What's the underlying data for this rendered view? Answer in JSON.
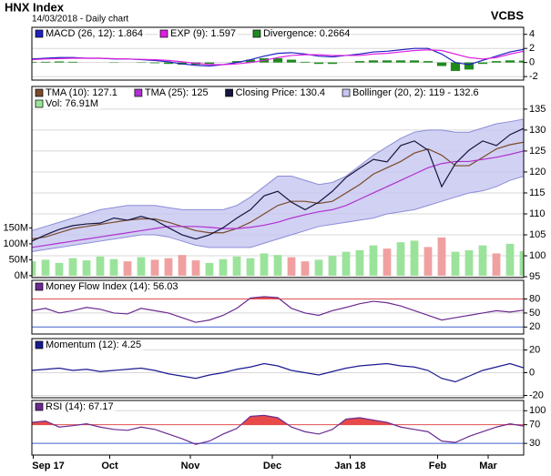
{
  "header": {
    "title": "HNX Index",
    "subtitle": "14/03/2018 - Daily chart",
    "source": "VCBS"
  },
  "chart_data": {
    "type": "stock",
    "x": [
      0,
      1,
      2,
      3,
      4,
      5,
      6,
      7,
      8,
      9,
      10,
      11,
      12,
      13,
      14,
      15,
      16,
      17,
      18,
      19,
      20,
      21,
      22,
      23,
      24,
      25,
      26,
      27,
      28,
      29,
      30,
      31,
      32,
      33,
      34,
      35,
      36
    ],
    "xlim": [
      0,
      36
    ],
    "xticks": [
      {
        "value": 0.1,
        "label": "Sep 17"
      },
      {
        "value": 5.7,
        "label": "Oct"
      },
      {
        "value": 11.6,
        "label": "Nov"
      },
      {
        "value": 17.6,
        "label": "Dec"
      },
      {
        "value": 23.3,
        "label": "Jan 18"
      },
      {
        "value": 29.7,
        "label": "Feb"
      },
      {
        "value": 33.4,
        "label": "Mar"
      }
    ],
    "panels": [
      {
        "type": "line",
        "ylim": [
          -2.5,
          5
        ],
        "yticks": [
          -2,
          0,
          2,
          4
        ],
        "series": [
          {
            "name": "MACD (26, 12): 1.864",
            "kind": "line",
            "color": "#2020c0",
            "values": [
              0.5,
              0.6,
              0.7,
              0.7,
              0.6,
              0.6,
              0.5,
              0.5,
              0.4,
              0.3,
              0.1,
              -0.2,
              -0.4,
              -0.5,
              -0.3,
              0.0,
              0.4,
              0.9,
              1.3,
              1.4,
              1.2,
              0.9,
              0.8,
              1.0,
              1.2,
              1.5,
              1.6,
              1.8,
              2.0,
              2.0,
              1.2,
              0.0,
              -0.3,
              0.3,
              0.9,
              1.5,
              1.864
            ]
          },
          {
            "name": "EXP (9): 1.597",
            "kind": "line",
            "color": "#e020e0",
            "values": [
              0.4,
              0.5,
              0.55,
              0.6,
              0.6,
              0.6,
              0.55,
              0.5,
              0.45,
              0.4,
              0.3,
              0.1,
              -0.1,
              -0.3,
              -0.3,
              -0.2,
              0.0,
              0.3,
              0.7,
              1.0,
              1.1,
              1.1,
              1.0,
              1.0,
              1.0,
              1.2,
              1.3,
              1.5,
              1.7,
              1.8,
              1.7,
              1.2,
              0.7,
              0.5,
              0.7,
              1.2,
              1.597
            ]
          },
          {
            "name": "Divergence: 0.2664",
            "kind": "bar",
            "color": "#1e8a1e",
            "values": [
              0.1,
              0.1,
              0.15,
              0.1,
              0,
              0,
              -0.05,
              0,
              -0.05,
              -0.1,
              -0.2,
              -0.3,
              -0.3,
              -0.2,
              0,
              0.2,
              0.4,
              0.6,
              0.6,
              0.4,
              0.1,
              -0.2,
              -0.2,
              0,
              0.2,
              0.3,
              0.3,
              0.3,
              0.3,
              0.2,
              -0.5,
              -1.2,
              -1.0,
              -0.2,
              0.2,
              0.3,
              0.2664
            ]
          }
        ]
      },
      {
        "type": "line",
        "ylim": [
          94.8,
          140.4
        ],
        "yticks": [
          95,
          100,
          105,
          110,
          115,
          120,
          125,
          130,
          135
        ],
        "y2lim": [
          -6,
          594
        ],
        "y2ticks": [
          {
            "value": 0,
            "label": "0M"
          },
          {
            "value": 50,
            "label": "50M"
          },
          {
            "value": 100,
            "label": "100M"
          },
          {
            "value": 150,
            "label": "150M"
          }
        ],
        "series": [
          {
            "name": "TMA (10): 127.1",
            "kind": "line",
            "color": "#7a4a2a",
            "values": [
              104,
              104.5,
              105.5,
              106.5,
              107,
              107.5,
              108,
              108.5,
              108.8,
              108.8,
              108,
              107,
              106,
              105.5,
              105.5,
              106.5,
              108,
              110,
              112,
              113,
              113,
              112.5,
              113,
              115,
              117,
              119.5,
              121,
              122.5,
              124.5,
              125.5,
              124,
              121.5,
              121.5,
              123.5,
              125.5,
              126.5,
              127.1
            ]
          },
          {
            "name": "TMA (25): 125",
            "kind": "line",
            "color": "#b030d0",
            "values": [
              102,
              102.5,
              103,
              103.5,
              104,
              104.5,
              105,
              105.5,
              106,
              106.5,
              107,
              107,
              107,
              106.8,
              106.5,
              106.5,
              106.8,
              107.3,
              108,
              109,
              109.8,
              110.5,
              111,
              112,
              113.5,
              115,
              116.5,
              118,
              119.5,
              121,
              122,
              122.5,
              122.5,
              123,
              123.5,
              124.2,
              125
            ]
          },
          {
            "name": "Closing Price: 130.4",
            "kind": "line",
            "color": "#15153f",
            "values": [
              103.5,
              105,
              106.3,
              107.2,
              107.6,
              107.8,
              109,
              108.5,
              109.4,
              108.5,
              106.7,
              105,
              104,
              105,
              106.7,
              109,
              111,
              114.3,
              115.4,
              112.8,
              111,
              112.8,
              115.4,
              118.7,
              120.9,
              123,
              122.4,
              126.3,
              127.4,
              125.2,
              116.5,
              122,
              125.2,
              127.4,
              126.3,
              128.9,
              130.4
            ]
          },
          {
            "name": "Bollinger (20, 2): 119 - 132.6",
            "kind": "band",
            "color": "#c6c6f0",
            "stroke": "#8c8cd8",
            "upper": [
              106,
              107,
              108,
              109,
              110,
              111,
              111.5,
              112,
              112,
              112,
              111.5,
              111,
              111,
              111,
              111,
              112,
              114,
              116.5,
              119,
              119,
              118,
              117,
              117.5,
              119,
              121.5,
              124,
              126,
              128,
              129.5,
              130,
              130,
              129.5,
              129.5,
              130.5,
              131.5,
              132,
              132.6
            ],
            "lower": [
              101,
              101.5,
              102,
              102.5,
              103,
              103.5,
              104,
              104.5,
              105,
              105,
              104.5,
              103.5,
              102.5,
              102,
              102,
              102,
              102,
              103,
              104,
              105,
              106,
              107,
              107.5,
              108,
              108.5,
              109,
              110,
              110.5,
              111,
              112,
              113,
              114,
              115,
              115.5,
              116.5,
              118,
              119
            ]
          },
          {
            "name": "Vol: 76.91M",
            "kind": "bar",
            "axis": "y2",
            "color": "#9be39b",
            "color_down": "#f0a0a0",
            "values": [
              45,
              50,
              40,
              55,
              48,
              60,
              52,
              45,
              58,
              50,
              55,
              65,
              48,
              40,
              52,
              60,
              55,
              70,
              65,
              58,
              45,
              50,
              62,
              75,
              80,
              95,
              85,
              105,
              110,
              90,
              120,
              75,
              80,
              95,
              70,
              100,
              76.91
            ]
          }
        ]
      },
      {
        "type": "line",
        "ylim": [
          5,
          120
        ],
        "yticks": [
          20,
          50,
          80
        ],
        "fill_above": 80,
        "fill_color": "#e84a4a",
        "series": [
          {
            "name": "Money Flow Index (14): 56.03",
            "kind": "line",
            "color": "#6a2a90",
            "values": [
              55,
              60,
              50,
              55,
              62,
              58,
              50,
              48,
              60,
              55,
              50,
              40,
              30,
              35,
              45,
              60,
              82,
              85,
              83,
              60,
              50,
              45,
              55,
              62,
              70,
              75,
              72,
              65,
              55,
              45,
              35,
              40,
              45,
              50,
              55,
              52,
              56.03
            ]
          }
        ]
      },
      {
        "type": "line",
        "ylim": [
          -22,
          30
        ],
        "yticks": [
          -20,
          0,
          20
        ],
        "series": [
          {
            "name": "Momentum (12): 4.25",
            "kind": "line",
            "color": "#1a1a90",
            "values": [
              2,
              3,
              4,
              2,
              3,
              1,
              2,
              3,
              4,
              2,
              -1,
              -3,
              -5,
              -2,
              0,
              3,
              5,
              8,
              6,
              2,
              0,
              -2,
              1,
              4,
              6,
              7,
              8,
              6,
              5,
              2,
              -5,
              -8,
              -3,
              2,
              5,
              8,
              4.25
            ]
          }
        ]
      },
      {
        "type": "line",
        "ylim": [
          5,
          122
        ],
        "yticks": [
          30,
          70,
          100
        ],
        "fill_above": 70,
        "fill_color": "#e84a4a",
        "series": [
          {
            "name": "RSI (14): 67.17",
            "kind": "line",
            "color": "#6a2a90",
            "values": [
              75,
              78,
              65,
              68,
              72,
              65,
              60,
              58,
              65,
              60,
              50,
              40,
              28,
              35,
              50,
              62,
              88,
              90,
              85,
              65,
              55,
              50,
              60,
              82,
              85,
              80,
              75,
              65,
              60,
              55,
              35,
              32,
              45,
              55,
              65,
              72,
              67.17
            ]
          }
        ]
      }
    ]
  }
}
